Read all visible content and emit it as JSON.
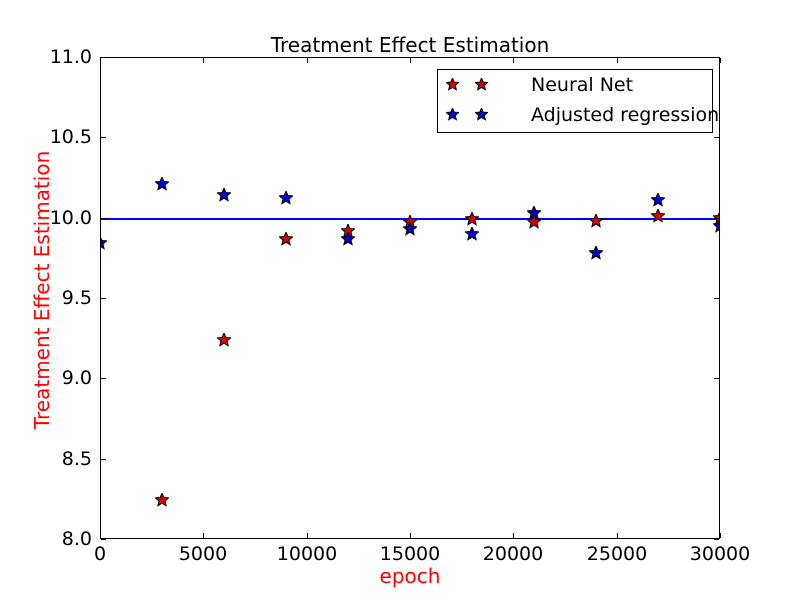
{
  "figure": {
    "background": "#ffffff",
    "frame_color": "#000000"
  },
  "chart_data": {
    "type": "scatter",
    "title": "Treatment Effect Estimation",
    "xlabel": "epoch",
    "ylabel": "Treatment Effect Estimation",
    "title_color": "#000000",
    "axis_label_color": "#ff0000",
    "xlim": [
      0,
      30000
    ],
    "ylim": [
      8.0,
      11.0
    ],
    "xtick_labels": [
      "0",
      "5000",
      "10000",
      "15000",
      "20000",
      "25000",
      "30000"
    ],
    "ytick_labels": [
      "8.0",
      "8.5",
      "9.0",
      "9.5",
      "10.0",
      "10.5",
      "11.0"
    ],
    "grid": false,
    "legend_position": "upper center",
    "marker": "star",
    "reference_line": {
      "y": 10.0,
      "color": "#0000ff"
    },
    "series": [
      {
        "name": "Neural Net",
        "color": "#d40000",
        "x": [
          3000,
          6000,
          9000,
          12000,
          15000,
          18000,
          21000,
          24000,
          27000,
          30000
        ],
        "y": [
          8.24,
          9.24,
          9.87,
          9.92,
          9.97,
          9.99,
          9.97,
          9.98,
          10.01,
          10.0
        ]
      },
      {
        "name": "Adjusted regression",
        "color": "#0000d4",
        "x": [
          0,
          3000,
          6000,
          9000,
          12000,
          15000,
          18000,
          21000,
          24000,
          27000,
          30000
        ],
        "y": [
          9.84,
          10.21,
          10.14,
          10.12,
          9.87,
          9.93,
          9.9,
          10.03,
          9.78,
          10.11,
          9.95
        ]
      }
    ]
  }
}
